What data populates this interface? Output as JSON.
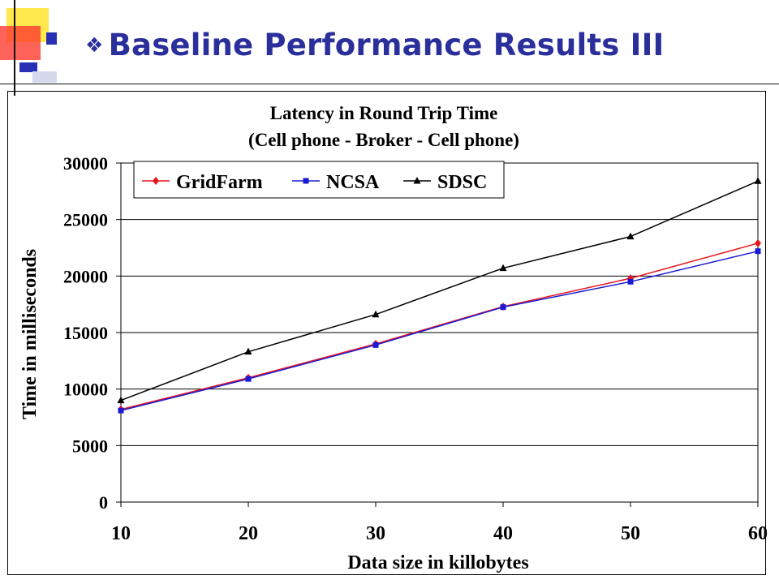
{
  "slide": {
    "bullet": "❖",
    "title": "Baseline Performance Results III"
  },
  "chart_data": {
    "type": "line",
    "title": "Latency in Round Trip Time",
    "subtitle": "(Cell phone - Broker - Cell phone)",
    "xlabel": "Data size in killobytes",
    "ylabel": "Time in milliseconds",
    "x": [
      10,
      20,
      30,
      40,
      50,
      60
    ],
    "ylim": [
      0,
      30000
    ],
    "yticks": [
      0,
      5000,
      10000,
      15000,
      20000,
      25000,
      30000
    ],
    "grid": true,
    "legend_position": "top",
    "series": [
      {
        "name": "GridFarm",
        "color": "#e8141c",
        "marker": "diamond",
        "values": [
          8200,
          11000,
          14000,
          17300,
          19800,
          22900
        ]
      },
      {
        "name": "NCSA",
        "color": "#1a1ad4",
        "marker": "square",
        "values": [
          8100,
          10900,
          13900,
          17250,
          19500,
          22200
        ]
      },
      {
        "name": "SDSC",
        "color": "#000000",
        "marker": "triangle",
        "values": [
          9000,
          13300,
          16600,
          20700,
          23500,
          28400
        ]
      }
    ]
  }
}
